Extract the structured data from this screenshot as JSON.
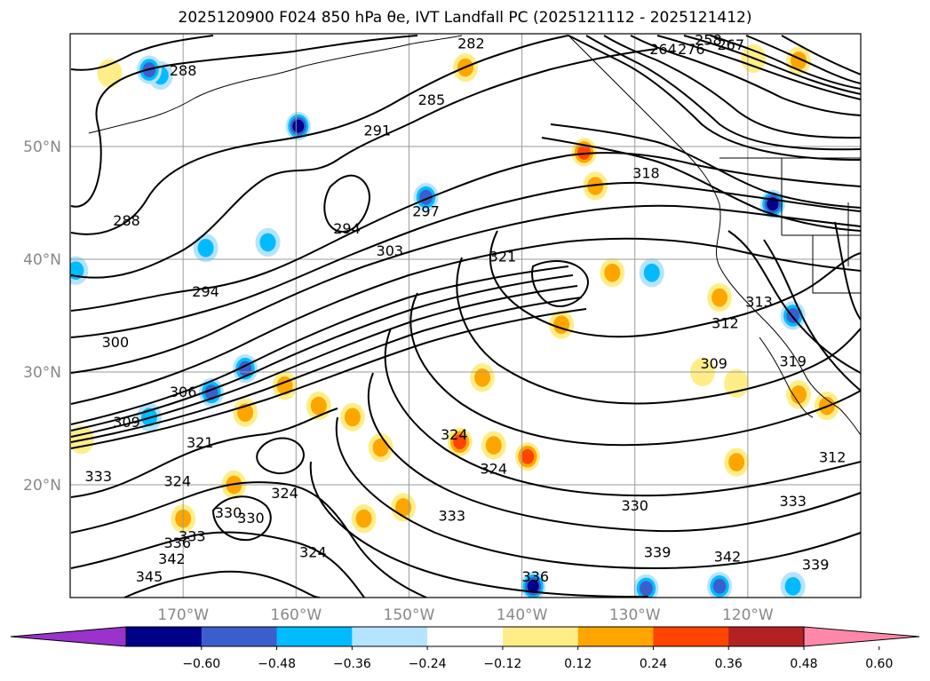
{
  "figure": {
    "title": "2025120900 F024 850 hPa θe, IVT Landfall PC (2025121112 - 2025121412)"
  },
  "map": {
    "lon_range": [
      -180,
      -110
    ],
    "lat_range": [
      10,
      60
    ],
    "lon_ticks": [
      {
        "value": -170,
        "label": "170°W"
      },
      {
        "value": -160,
        "label": "160°W"
      },
      {
        "value": -150,
        "label": "150°W"
      },
      {
        "value": -140,
        "label": "140°W"
      },
      {
        "value": -130,
        "label": "130°W"
      },
      {
        "value": -120,
        "label": "120°W"
      }
    ],
    "lat_ticks": [
      {
        "value": 20,
        "label": "20°N"
      },
      {
        "value": 30,
        "label": "30°N"
      },
      {
        "value": 40,
        "label": "40°N"
      },
      {
        "value": 50,
        "label": "50°N"
      }
    ],
    "grid": true,
    "coast_color": "#000000"
  },
  "chart_data": {
    "type": "heatmap",
    "contour_labels": [
      {
        "text": "282",
        "lon": -144.5,
        "lat": 58.7
      },
      {
        "text": "258",
        "lon": -123.5,
        "lat": 59.0
      },
      {
        "text": "267",
        "lon": -121.5,
        "lat": 58.6
      },
      {
        "text": "264",
        "lon": -127.5,
        "lat": 58.2
      },
      {
        "text": "276",
        "lon": -125.0,
        "lat": 58.2
      },
      {
        "text": "288",
        "lon": -170.0,
        "lat": 56.3
      },
      {
        "text": "285",
        "lon": -148.0,
        "lat": 53.7
      },
      {
        "text": "291",
        "lon": -152.8,
        "lat": 51.0
      },
      {
        "text": "318",
        "lon": -129.0,
        "lat": 47.2
      },
      {
        "text": "297",
        "lon": -148.5,
        "lat": 43.8
      },
      {
        "text": "288",
        "lon": -175.0,
        "lat": 43.0
      },
      {
        "text": "294",
        "lon": -155.5,
        "lat": 42.3
      },
      {
        "text": "303",
        "lon": -151.7,
        "lat": 40.3
      },
      {
        "text": "321",
        "lon": -141.7,
        "lat": 39.8
      },
      {
        "text": "294",
        "lon": -168.0,
        "lat": 36.7
      },
      {
        "text": "313",
        "lon": -119.0,
        "lat": 35.8
      },
      {
        "text": "312",
        "lon": -122.0,
        "lat": 33.9
      },
      {
        "text": "300",
        "lon": -176.0,
        "lat": 32.2
      },
      {
        "text": "309",
        "lon": -123.0,
        "lat": 30.3
      },
      {
        "text": "306",
        "lon": -170.0,
        "lat": 27.8
      },
      {
        "text": "319",
        "lon": -116.0,
        "lat": 30.5
      },
      {
        "text": "309",
        "lon": -175.0,
        "lat": 25.1
      },
      {
        "text": "321",
        "lon": -168.5,
        "lat": 23.3
      },
      {
        "text": "324",
        "lon": -146.0,
        "lat": 24.0
      },
      {
        "text": "324",
        "lon": -142.5,
        "lat": 21.0
      },
      {
        "text": "312",
        "lon": -112.5,
        "lat": 22.0
      },
      {
        "text": "333",
        "lon": -177.5,
        "lat": 20.3
      },
      {
        "text": "324",
        "lon": -170.5,
        "lat": 19.9
      },
      {
        "text": "324",
        "lon": -161.0,
        "lat": 18.8
      },
      {
        "text": "330",
        "lon": -166.0,
        "lat": 17.1
      },
      {
        "text": "330",
        "lon": -164.0,
        "lat": 16.6
      },
      {
        "text": "333",
        "lon": -146.2,
        "lat": 16.8
      },
      {
        "text": "330",
        "lon": -130.0,
        "lat": 17.7
      },
      {
        "text": "333",
        "lon": -116.0,
        "lat": 18.1
      },
      {
        "text": "333",
        "lon": -169.2,
        "lat": 15.0
      },
      {
        "text": "336",
        "lon": -170.5,
        "lat": 14.4
      },
      {
        "text": "324",
        "lon": -158.5,
        "lat": 13.6
      },
      {
        "text": "339",
        "lon": -128.0,
        "lat": 13.6
      },
      {
        "text": "342",
        "lon": -121.8,
        "lat": 13.2
      },
      {
        "text": "342",
        "lon": -171.0,
        "lat": 13.0
      },
      {
        "text": "345",
        "lon": -173.0,
        "lat": 11.4
      },
      {
        "text": "336",
        "lon": -138.8,
        "lat": 11.4
      },
      {
        "text": "339",
        "lon": -114.0,
        "lat": 12.5
      }
    ],
    "pc_patches": [
      {
        "lon": -134.5,
        "lat": 49.5,
        "v": 0.36
      },
      {
        "lon": -133.5,
        "lat": 46.5,
        "v": 0.24
      },
      {
        "lon": -145.0,
        "lat": 57.0,
        "v": 0.24
      },
      {
        "lon": -115.5,
        "lat": 57.6,
        "v": 0.24
      },
      {
        "lon": -119.5,
        "lat": 57.8,
        "v": 0.12
      },
      {
        "lon": -176.5,
        "lat": 56.5,
        "v": 0.12
      },
      {
        "lon": -172.0,
        "lat": 56.3,
        "v": -0.24
      },
      {
        "lon": -173.0,
        "lat": 56.8,
        "v": -0.36
      },
      {
        "lon": -159.8,
        "lat": 51.8,
        "v": -0.48
      },
      {
        "lon": -148.5,
        "lat": 45.5,
        "v": -0.36
      },
      {
        "lon": -117.8,
        "lat": 44.9,
        "v": -0.48
      },
      {
        "lon": -168.0,
        "lat": 41.0,
        "v": -0.24
      },
      {
        "lon": -162.5,
        "lat": 41.5,
        "v": -0.24
      },
      {
        "lon": -167.5,
        "lat": 28.2,
        "v": -0.36
      },
      {
        "lon": -164.5,
        "lat": 30.3,
        "v": -0.36
      },
      {
        "lon": -173.0,
        "lat": 26.0,
        "v": -0.24
      },
      {
        "lon": -158.0,
        "lat": 27.0,
        "v": 0.24
      },
      {
        "lon": -161.0,
        "lat": 28.8,
        "v": 0.24
      },
      {
        "lon": -155.0,
        "lat": 26.0,
        "v": 0.24
      },
      {
        "lon": -164.5,
        "lat": 26.4,
        "v": 0.24
      },
      {
        "lon": -152.5,
        "lat": 23.3,
        "v": 0.24
      },
      {
        "lon": -145.5,
        "lat": 23.8,
        "v": 0.36
      },
      {
        "lon": -142.5,
        "lat": 23.5,
        "v": 0.24
      },
      {
        "lon": -139.5,
        "lat": 22.5,
        "v": 0.36
      },
      {
        "lon": -143.5,
        "lat": 29.5,
        "v": 0.24
      },
      {
        "lon": -132.0,
        "lat": 38.8,
        "v": 0.24
      },
      {
        "lon": -128.5,
        "lat": 38.8,
        "v": -0.24
      },
      {
        "lon": -122.5,
        "lat": 36.6,
        "v": 0.24
      },
      {
        "lon": -115.5,
        "lat": 28.0,
        "v": 0.24
      },
      {
        "lon": -113.0,
        "lat": 27.0,
        "v": 0.24
      },
      {
        "lon": -116.0,
        "lat": 35.0,
        "v": -0.36
      },
      {
        "lon": -136.5,
        "lat": 34.2,
        "v": 0.24
      },
      {
        "lon": -124.0,
        "lat": 30.0,
        "v": 0.12
      },
      {
        "lon": -121.0,
        "lat": 29.0,
        "v": 0.12
      },
      {
        "lon": -121.0,
        "lat": 22.0,
        "v": 0.24
      },
      {
        "lon": -150.5,
        "lat": 18.0,
        "v": 0.24
      },
      {
        "lon": -154.0,
        "lat": 17.0,
        "v": 0.24
      },
      {
        "lon": -170.0,
        "lat": 17.0,
        "v": 0.24
      },
      {
        "lon": -165.5,
        "lat": 20.0,
        "v": 0.24
      },
      {
        "lon": -139.0,
        "lat": 11.0,
        "v": -0.48
      },
      {
        "lon": -129.0,
        "lat": 10.8,
        "v": -0.36
      },
      {
        "lon": -122.5,
        "lat": 11.0,
        "v": -0.36
      },
      {
        "lon": -116.0,
        "lat": 11.0,
        "v": -0.24
      },
      {
        "lon": -179.5,
        "lat": 39.0,
        "v": -0.24
      },
      {
        "lon": -179.0,
        "lat": 24.0,
        "v": 0.12
      }
    ]
  },
  "colorbar": {
    "colors": [
      "#9a33cc",
      "#000088",
      "#3a5fcd",
      "#00bbff",
      "#b4e4ff",
      "#ffffff",
      "#ffee88",
      "#ffa500",
      "#ff4400",
      "#b22222",
      "#ff88aa"
    ],
    "tick_labels": [
      "−0.60",
      "−0.48",
      "−0.36",
      "−0.24",
      "−0.12",
      "0.12",
      "0.24",
      "0.36",
      "0.48",
      "0.60"
    ]
  }
}
